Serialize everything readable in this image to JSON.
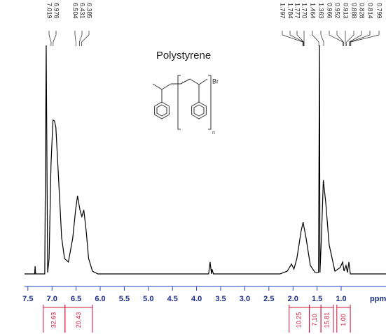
{
  "chart_data": {
    "type": "line",
    "title": "Polystyrene",
    "x_label": "ppm",
    "color": "#000000",
    "axis_color": "#1f3fbf",
    "xlim": [
      7.57,
      0.07
    ],
    "ylim": [
      0,
      100
    ],
    "xticks": [
      7.5,
      {
        "value": 7,
        "label": "7.0"
      },
      6.5,
      {
        "value": 6,
        "label": "6.0"
      },
      5.5,
      {
        "value": 5,
        "label": "5.0"
      },
      4.5,
      {
        "value": 4,
        "label": "4.0"
      },
      3.5,
      {
        "value": 3,
        "label": "3.0"
      },
      2.5,
      {
        "value": 2,
        "label": "2.0"
      },
      1.5,
      {
        "value": 1,
        "label": "1.0"
      }
    ],
    "x": [
      7.57,
      7.36,
      7.35,
      7.34,
      7.15,
      7.12,
      7.09,
      7.06,
      7.02,
      6.98,
      6.95,
      6.92,
      6.86,
      6.8,
      6.74,
      6.66,
      6.57,
      6.51,
      6.47,
      6.42,
      6.38,
      6.34,
      6.29,
      6.24,
      6.16,
      6.05,
      3.75,
      3.72,
      3.69,
      3.68,
      3.65,
      2.27,
      2.12,
      2.03,
      1.98,
      1.92,
      1.83,
      1.79,
      1.73,
      1.64,
      1.54,
      1.47,
      1.45,
      1.44,
      1.41,
      1.37,
      1.32,
      1.25,
      1.13,
      1.02,
      0.97,
      0.94,
      0.9,
      0.87,
      0.84,
      0.81,
      0.07
    ],
    "values": [
      0,
      0,
      3.4,
      0,
      0,
      100,
      0.6,
      6.7,
      48.3,
      67.3,
      67,
      64.2,
      40.4,
      15.9,
      6.7,
      5.2,
      15.6,
      28,
      34.2,
      28,
      25.1,
      28,
      18.7,
      6.7,
      1.2,
      0,
      0,
      5.2,
      0,
      2.1,
      0,
      0,
      1.2,
      4.3,
      2.1,
      6.7,
      18.9,
      22.6,
      15.9,
      3.7,
      0.6,
      0.6,
      100,
      0.6,
      15.9,
      41,
      31.2,
      12.8,
      1.2,
      2.8,
      5.2,
      1.2,
      3.7,
      0.6,
      5.2,
      0,
      0
    ],
    "peaks": {
      "values": [
        7.019,
        6.976,
        6.504,
        6.431,
        6.385,
        1.797,
        1.784,
        1.777,
        1.77,
        1.464,
        1.363,
        0.966,
        0.952,
        0.913,
        0.888,
        0.828,
        0.814,
        0.799
      ],
      "value_labels": [
        "7.019",
        "6.976",
        "6.504",
        "6.431",
        "6.385",
        "1.797",
        "1.784",
        "1.777",
        "1.770",
        "1.464",
        "1.363",
        "0.966",
        "0.952",
        "0.913",
        "0.888",
        "0.828",
        "0.814",
        "0.799"
      ]
    },
    "integrals": {
      "color": "#d0103a",
      "values": [
        32.63,
        20.43,
        10.25,
        7.1,
        15.81,
        1
      ],
      "value_labels": [
        "32.63",
        "20.43",
        "10.25",
        "7.10",
        "15.81",
        "1.00"
      ],
      "ranges": [
        [
          7.18,
          6.73
        ],
        [
          6.73,
          6.16
        ],
        [
          2.08,
          1.66
        ],
        [
          1.66,
          1.42
        ],
        [
          1.42,
          1.16
        ],
        [
          1.09,
          0.81
        ]
      ]
    },
    "structure": {
      "substituent": "Br",
      "repeat": "n"
    }
  }
}
